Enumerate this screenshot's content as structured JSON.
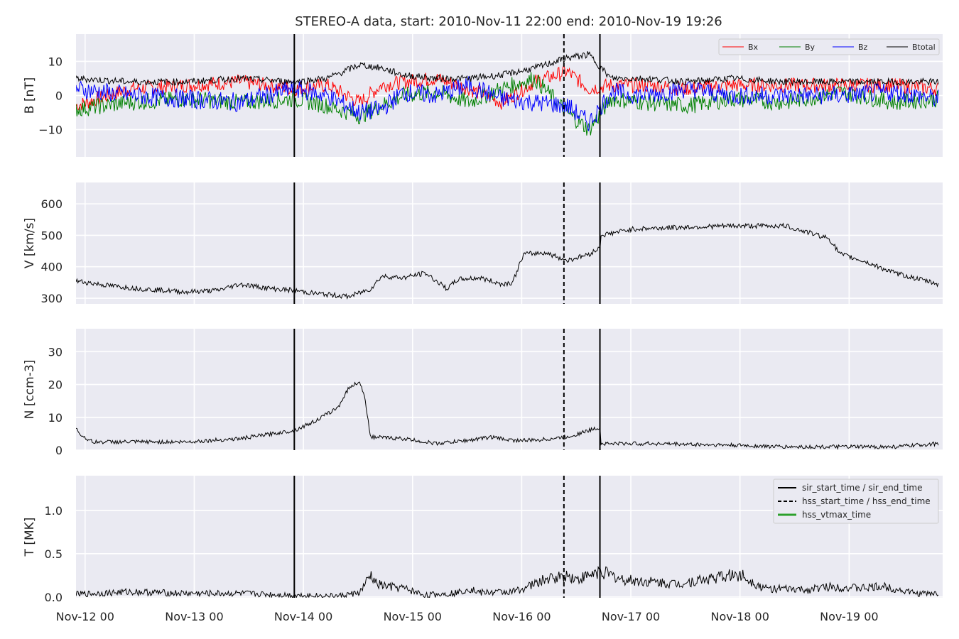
{
  "chart_data": {
    "type": "line",
    "title": "STEREO-A data, start: 2010-Nov-11 22:00  end: 2010-Nov-19 19:26",
    "x_start": "2010-11-11T22:00",
    "x_end": "2010-11-19T19:26",
    "x_ticks": [
      {
        "t": 0.0833,
        "label": "Nov-12 00"
      },
      {
        "t": 1.0833,
        "label": "Nov-13 00"
      },
      {
        "t": 2.0833,
        "label": "Nov-14 00"
      },
      {
        "t": 3.0833,
        "label": "Nov-15 00"
      },
      {
        "t": 4.0833,
        "label": "Nov-16 00"
      },
      {
        "t": 5.0833,
        "label": "Nov-17 00"
      },
      {
        "t": 6.0833,
        "label": "Nov-18 00"
      },
      {
        "t": 7.0833,
        "label": "Nov-19 00"
      }
    ],
    "events": {
      "sir_start_time": 2.0,
      "sir_end_time": 4.8,
      "hss_start_time": 4.47,
      "hss_end_time": 4.47,
      "style": {
        "sir": "solid",
        "hss": "dashed"
      }
    },
    "panels": [
      {
        "ylabel": "B [nT]",
        "ylim": [
          -18,
          18
        ],
        "yticks": [
          {
            "v": 10,
            "label": "10"
          },
          {
            "v": 0,
            "label": "0"
          },
          {
            "v": -10,
            "label": "−10"
          }
        ],
        "legend": {
          "placement": "top-right",
          "entries": [
            "Bx",
            "By",
            "Bz",
            "Btotal"
          ]
        },
        "series": [
          {
            "name": "Bx",
            "color": "#ff0000",
            "x": [
              0,
              0.5,
              1.0,
              1.5,
              2.0,
              2.3,
              2.6,
              2.8,
              3.0,
              3.3,
              3.6,
              3.9,
              4.2,
              4.5,
              4.7,
              4.9,
              5.2,
              5.6,
              6.0,
              6.5,
              7.0,
              7.5,
              7.9
            ],
            "y": [
              -3,
              2,
              3,
              4,
              2,
              3,
              -2,
              3,
              4,
              5,
              2,
              -2,
              4,
              7,
              2,
              3,
              3,
              2,
              3,
              3,
              3,
              3,
              2
            ]
          },
          {
            "name": "By",
            "color": "#008000",
            "x": [
              0,
              0.5,
              1.0,
              1.5,
              2.0,
              2.3,
              2.6,
              2.8,
              3.0,
              3.3,
              3.6,
              3.9,
              4.2,
              4.5,
              4.7,
              4.9,
              5.2,
              5.6,
              6.0,
              6.5,
              7.0,
              7.5,
              7.9
            ],
            "y": [
              -4,
              -2,
              -1,
              -2,
              -1,
              -3,
              -6,
              -3,
              0,
              1,
              -2,
              2,
              5,
              -5,
              -10,
              -1,
              -2,
              -3,
              -1,
              -2,
              1,
              -2,
              -1
            ]
          },
          {
            "name": "Bz",
            "color": "#0000ff",
            "x": [
              0,
              0.5,
              1.0,
              1.5,
              2.0,
              2.3,
              2.6,
              2.8,
              3.0,
              3.3,
              3.6,
              3.9,
              4.2,
              4.5,
              4.7,
              4.9,
              5.2,
              5.6,
              6.0,
              6.5,
              7.0,
              7.5,
              7.9
            ],
            "y": [
              2,
              0,
              -1,
              -2,
              2,
              0,
              -5,
              -4,
              1,
              0,
              3,
              -1,
              -2,
              -3,
              -8,
              1,
              0,
              2,
              0,
              0,
              0,
              1,
              -1
            ]
          },
          {
            "name": "Btotal",
            "color": "#000000",
            "x": [
              0,
              0.5,
              1.0,
              1.5,
              2.0,
              2.3,
              2.6,
              2.8,
              3.0,
              3.3,
              3.6,
              3.9,
              4.2,
              4.5,
              4.7,
              4.9,
              5.2,
              5.6,
              6.0,
              6.5,
              7.0,
              7.5,
              7.9
            ],
            "y": [
              5,
              4,
              4,
              5,
              4,
              5,
              9,
              8,
              6,
              5,
              5,
              6,
              8,
              11,
              12,
              5,
              5,
              4,
              5,
              4,
              4,
              4,
              4
            ]
          }
        ]
      },
      {
        "ylabel": "V [km/s]",
        "ylim": [
          282,
          668
        ],
        "yticks": [
          {
            "v": 600,
            "label": "600"
          },
          {
            "v": 500,
            "label": "500"
          },
          {
            "v": 400,
            "label": "400"
          },
          {
            "v": 300,
            "label": "300"
          }
        ],
        "series": [
          {
            "name": "",
            "color": "#000000",
            "x": [
              0,
              0.1,
              0.3,
              0.6,
              1.0,
              1.3,
              1.5,
              1.8,
              2.0,
              2.2,
              2.5,
              2.7,
              2.8,
              3.0,
              3.2,
              3.4,
              3.5,
              3.7,
              3.9,
              4.0,
              4.1,
              4.3,
              4.5,
              4.7,
              4.8,
              4.81,
              5.1,
              5.5,
              6.0,
              6.5,
              6.9,
              7.0,
              7.2,
              7.5,
              7.9
            ],
            "y": [
              355,
              350,
              340,
              330,
              320,
              325,
              345,
              330,
              325,
              315,
              305,
              330,
              370,
              365,
              380,
              330,
              360,
              365,
              345,
              350,
              440,
              445,
              420,
              440,
              460,
              500,
              520,
              525,
              530,
              530,
              490,
              440,
              420,
              380,
              345
            ]
          }
        ]
      },
      {
        "ylabel": "N [ccm-3]",
        "ylim": [
          0,
          37
        ],
        "yticks": [
          {
            "v": 30,
            "label": "30"
          },
          {
            "v": 20,
            "label": "20"
          },
          {
            "v": 10,
            "label": "10"
          },
          {
            "v": 0,
            "label": "0"
          }
        ],
        "series": [
          {
            "name": "",
            "color": "#000000",
            "x": [
              0,
              0.05,
              0.15,
              0.5,
              1.0,
              1.5,
              2.0,
              2.2,
              2.4,
              2.5,
              2.6,
              2.65,
              2.7,
              3.0,
              3.3,
              3.6,
              3.8,
              4.0,
              4.2,
              4.5,
              4.8,
              4.81,
              5.3,
              6.0,
              6.5,
              7.0,
              7.5,
              7.9
            ],
            "y": [
              6.5,
              4.5,
              2.5,
              2.5,
              2.5,
              3.5,
              6,
              9,
              13,
              19,
              21,
              15,
              4,
              3.5,
              2,
              3,
              4,
              3,
              3,
              4,
              7,
              2,
              2,
              1.5,
              1,
              1,
              1,
              2
            ]
          }
        ]
      },
      {
        "ylabel": "T [MK]",
        "ylim": [
          -0.01,
          1.4
        ],
        "yticks": [
          {
            "v": 1.0,
            "label": "1.0"
          },
          {
            "v": 0.5,
            "label": "0.5"
          },
          {
            "v": 0.0,
            "label": "0.0"
          }
        ],
        "legend": {
          "placement": "top-right",
          "entries": [
            "sir_start_time / sir_end_time",
            "hss_start_time / hss_end_time",
            "hss_vtmax_time"
          ]
        },
        "series": [
          {
            "name": "",
            "color": "#000000",
            "x": [
              0,
              0.5,
              1.0,
              1.5,
              2.0,
              2.4,
              2.6,
              2.7,
              2.75,
              2.85,
              3.0,
              3.2,
              3.5,
              3.6,
              3.7,
              4.0,
              4.1,
              4.3,
              4.5,
              4.6,
              4.8,
              5.0,
              5.5,
              6.0,
              6.1,
              6.3,
              6.7,
              6.9,
              7.2,
              7.4,
              7.7,
              7.9
            ],
            "y": [
              0.03,
              0.06,
              0.04,
              0.04,
              0.02,
              0.01,
              0.05,
              0.25,
              0.15,
              0.12,
              0.1,
              0.02,
              0.05,
              0.1,
              0.05,
              0.06,
              0.1,
              0.2,
              0.25,
              0.2,
              0.3,
              0.2,
              0.15,
              0.25,
              0.25,
              0.1,
              0.08,
              0.12,
              0.1,
              0.12,
              0.04,
              0.04
            ]
          }
        ]
      }
    ]
  }
}
